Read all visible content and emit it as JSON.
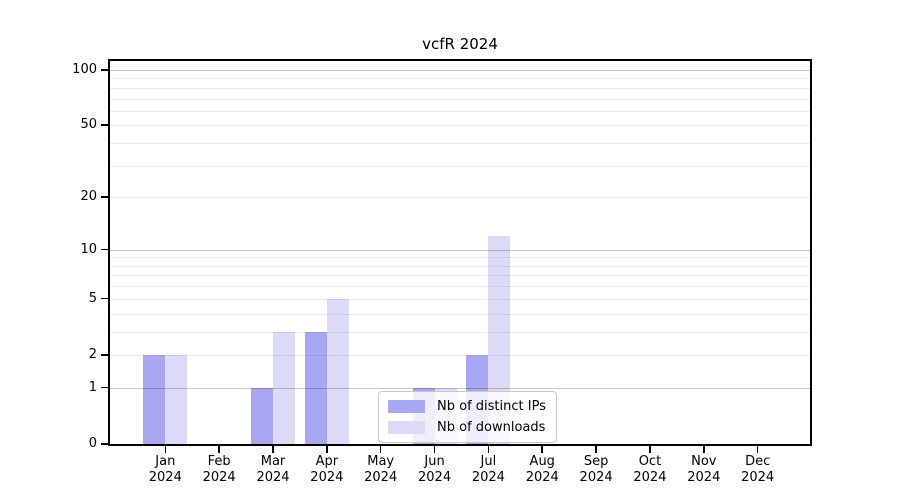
{
  "figure": {
    "background": "#ffffff"
  },
  "chart_data": {
    "type": "bar",
    "title": "vcfR 2024",
    "x": [
      "Jan 2024",
      "Feb 2024",
      "Mar 2024",
      "Apr 2024",
      "May 2024",
      "Jun 2024",
      "Jul 2024",
      "Aug 2024",
      "Sep 2024",
      "Oct 2024",
      "Nov 2024",
      "Dec 2024"
    ],
    "series": [
      {
        "name": "Nb of distinct IPs",
        "color": "#a8a8f2",
        "values": [
          2,
          0,
          1,
          3,
          0,
          1,
          2,
          0,
          0,
          0,
          0,
          0
        ]
      },
      {
        "name": "Nb of downloads",
        "color": "#dbdbf8",
        "values": [
          2,
          0,
          3,
          5,
          0,
          1,
          12,
          0,
          0,
          0,
          0,
          0
        ]
      }
    ],
    "xlabel": "",
    "ylabel": "",
    "y_scale": "log1p",
    "y_ticks": [
      0,
      1,
      2,
      5,
      10,
      20,
      50,
      100
    ],
    "y_gridlines_major": [
      1,
      10,
      100
    ],
    "y_gridlines_minor": [
      2,
      3,
      4,
      5,
      6,
      7,
      8,
      9,
      20,
      30,
      40,
      50,
      60,
      70,
      80,
      90
    ],
    "ylim": [
      0,
      112
    ],
    "grid": "horizontal",
    "legend_position": "inside-bottom-center"
  },
  "colors": {
    "grid_major": "rgba(0,0,0,0.22)",
    "grid_minor": "rgba(0,0,0,0.08)",
    "axis": "#000000",
    "legend_border": "#c8c8c8",
    "legend_background": "rgba(255,255,255,0.8)"
  }
}
